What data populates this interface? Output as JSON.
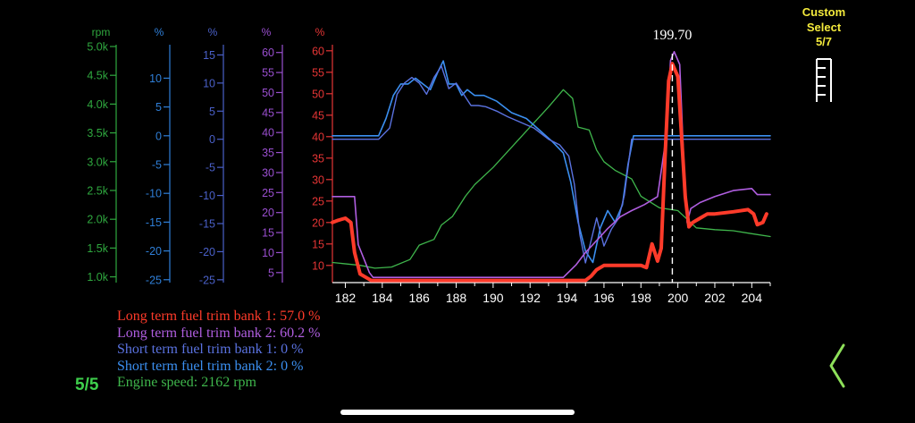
{
  "chart_data": {
    "type": "line",
    "cursor": {
      "x": 199.7,
      "label": "199.70"
    },
    "x": {
      "min": 181.3,
      "max": 205.0,
      "ticks": [
        182,
        184,
        186,
        188,
        190,
        192,
        194,
        196,
        198,
        200,
        202,
        204
      ]
    },
    "axes": [
      {
        "unit": "rpm",
        "color": "#2fa83f",
        "range": [
          0.9,
          5.0
        ],
        "ticks": [
          "5.0k",
          "4.5k",
          "4.0k",
          "3.5k",
          "3.0k",
          "2.5k",
          "2.0k",
          "1.5k",
          "1.0k"
        ],
        "tick_values": [
          5.0,
          4.5,
          4.0,
          3.5,
          3.0,
          2.5,
          2.0,
          1.5,
          1.0
        ]
      },
      {
        "unit": "%",
        "color": "#2f7fd8",
        "range": [
          -25.5,
          15.5
        ],
        "ticks": [
          "10",
          "5",
          "0",
          "-5",
          "-10",
          "-15",
          "-20",
          "-25"
        ],
        "tick_values": [
          10,
          5,
          0,
          -5,
          -10,
          -15,
          -20,
          -25
        ]
      },
      {
        "unit": "%",
        "color": "#4a60c8",
        "range": [
          -25.5,
          16.5
        ],
        "ticks": [
          "15",
          "10",
          "5",
          "0",
          "-5",
          "-10",
          "-15",
          "-20",
          "-25"
        ],
        "tick_values": [
          15,
          10,
          5,
          0,
          -5,
          -10,
          -15,
          -20,
          -25
        ]
      },
      {
        "unit": "%",
        "color": "#9a4fd0",
        "range": [
          2.5,
          61.5
        ],
        "ticks": [
          "60",
          "55",
          "50",
          "45",
          "40",
          "35",
          "30",
          "25",
          "20",
          "15",
          "10",
          "5"
        ],
        "tick_values": [
          60,
          55,
          50,
          45,
          40,
          35,
          30,
          25,
          20,
          15,
          10,
          5
        ]
      },
      {
        "unit": "%",
        "color": "#e53535",
        "range": [
          6.0,
          61.0
        ],
        "ticks": [
          "60",
          "55",
          "50",
          "45",
          "40",
          "35",
          "30",
          "25",
          "20",
          "15",
          "10"
        ],
        "tick_values": [
          60,
          55,
          50,
          45,
          40,
          35,
          30,
          25,
          20,
          15,
          10
        ]
      }
    ],
    "series": [
      {
        "name": "Long term fuel trim bank 1",
        "axis": 4,
        "color": "#ff3b2a",
        "width": 4,
        "points": [
          [
            181.3,
            20
          ],
          [
            181.6,
            20.5
          ],
          [
            182.0,
            21
          ],
          [
            182.3,
            20
          ],
          [
            182.5,
            13
          ],
          [
            182.8,
            8
          ],
          [
            183.2,
            7
          ],
          [
            183.4,
            6.5
          ],
          [
            195.0,
            6.5
          ],
          [
            195.3,
            7.5
          ],
          [
            195.6,
            9
          ],
          [
            196.0,
            10
          ],
          [
            198.0,
            10
          ],
          [
            198.3,
            9.5
          ],
          [
            198.6,
            15
          ],
          [
            198.9,
            11
          ],
          [
            199.1,
            14
          ],
          [
            199.3,
            35
          ],
          [
            199.5,
            53
          ],
          [
            199.7,
            57
          ],
          [
            200.0,
            54
          ],
          [
            200.2,
            40
          ],
          [
            200.4,
            26
          ],
          [
            200.6,
            19
          ],
          [
            200.8,
            20
          ],
          [
            201.2,
            21
          ],
          [
            201.6,
            22
          ],
          [
            202.0,
            22
          ],
          [
            203.0,
            22.5
          ],
          [
            203.8,
            23
          ],
          [
            204.1,
            22
          ],
          [
            204.3,
            19.5
          ],
          [
            204.6,
            20
          ],
          [
            204.8,
            22
          ]
        ]
      },
      {
        "name": "Long term fuel trim bank 2",
        "axis": 3,
        "color": "#b05ee0",
        "width": 1.6,
        "points": [
          [
            181.3,
            24
          ],
          [
            182.5,
            24
          ],
          [
            182.7,
            12
          ],
          [
            183.3,
            5
          ],
          [
            183.5,
            3.8
          ],
          [
            193.8,
            3.8
          ],
          [
            194.5,
            7
          ],
          [
            195.0,
            10
          ],
          [
            195.6,
            13
          ],
          [
            196.2,
            16
          ],
          [
            196.9,
            19
          ],
          [
            197.5,
            20.5
          ],
          [
            198.2,
            22
          ],
          [
            198.9,
            24
          ],
          [
            199.4,
            40
          ],
          [
            199.6,
            58
          ],
          [
            199.8,
            60.2
          ],
          [
            200.1,
            57
          ],
          [
            200.3,
            35
          ],
          [
            200.5,
            17.5
          ],
          [
            200.7,
            21
          ],
          [
            201.2,
            22.5
          ],
          [
            202.0,
            24
          ],
          [
            203.0,
            25.5
          ],
          [
            204.0,
            26
          ],
          [
            204.3,
            24.5
          ],
          [
            205.0,
            24.5
          ]
        ]
      },
      {
        "name": "Short term fuel trim bank 1",
        "axis": 2,
        "color": "#5a72e0",
        "width": 1.4,
        "points": [
          [
            181.3,
            0
          ],
          [
            183.8,
            0
          ],
          [
            184.4,
            2
          ],
          [
            184.8,
            8
          ],
          [
            185.2,
            10
          ],
          [
            185.6,
            11
          ],
          [
            186.0,
            10
          ],
          [
            186.4,
            8
          ],
          [
            186.8,
            11
          ],
          [
            187.2,
            13
          ],
          [
            187.6,
            9
          ],
          [
            188.0,
            10
          ],
          [
            188.4,
            8
          ],
          [
            188.8,
            6
          ],
          [
            189.2,
            6
          ],
          [
            189.6,
            5.8
          ],
          [
            190.2,
            5
          ],
          [
            190.8,
            4
          ],
          [
            191.5,
            3
          ],
          [
            192.2,
            2
          ],
          [
            193.0,
            0
          ],
          [
            193.6,
            -1
          ],
          [
            194.1,
            -3
          ],
          [
            194.4,
            -8
          ],
          [
            194.7,
            -17
          ],
          [
            195.0,
            -22
          ],
          [
            195.3,
            -18
          ],
          [
            195.6,
            -14
          ],
          [
            196.0,
            -19
          ],
          [
            196.4,
            -16
          ],
          [
            196.8,
            -14
          ],
          [
            197.1,
            -10
          ],
          [
            197.5,
            0
          ],
          [
            205.0,
            0
          ]
        ]
      },
      {
        "name": "Short term fuel trim bank 2",
        "axis": 1,
        "color": "#3b8ff0",
        "width": 1.6,
        "points": [
          [
            181.3,
            0
          ],
          [
            183.8,
            0
          ],
          [
            184.2,
            3
          ],
          [
            184.6,
            7
          ],
          [
            185.0,
            9
          ],
          [
            185.4,
            9
          ],
          [
            185.8,
            10
          ],
          [
            186.2,
            9
          ],
          [
            186.6,
            8
          ],
          [
            187.0,
            11
          ],
          [
            187.3,
            13
          ],
          [
            187.6,
            9
          ],
          [
            188.0,
            9
          ],
          [
            188.3,
            7
          ],
          [
            188.6,
            8
          ],
          [
            189.0,
            7
          ],
          [
            189.5,
            7
          ],
          [
            190.2,
            6
          ],
          [
            191.0,
            4
          ],
          [
            191.8,
            3
          ],
          [
            192.5,
            1
          ],
          [
            193.2,
            -1
          ],
          [
            193.8,
            -3
          ],
          [
            194.2,
            -8
          ],
          [
            194.6,
            -15
          ],
          [
            195.0,
            -20
          ],
          [
            195.4,
            -22
          ],
          [
            195.8,
            -16
          ],
          [
            196.2,
            -13
          ],
          [
            196.6,
            -15
          ],
          [
            197.0,
            -12
          ],
          [
            197.3,
            -5
          ],
          [
            197.6,
            0
          ],
          [
            205.0,
            0
          ]
        ]
      },
      {
        "name": "Engine speed",
        "axis": 0,
        "color": "#3fb64c",
        "width": 1.3,
        "points": [
          [
            181.3,
            1.25
          ],
          [
            182.8,
            1.2
          ],
          [
            183.6,
            1.15
          ],
          [
            184.5,
            1.17
          ],
          [
            185.5,
            1.3
          ],
          [
            186.0,
            1.55
          ],
          [
            186.8,
            1.65
          ],
          [
            187.2,
            1.9
          ],
          [
            187.8,
            2.05
          ],
          [
            188.5,
            2.4
          ],
          [
            189.0,
            2.6
          ],
          [
            190.0,
            2.9
          ],
          [
            191.0,
            3.25
          ],
          [
            192.0,
            3.6
          ],
          [
            193.0,
            3.95
          ],
          [
            193.8,
            4.25
          ],
          [
            194.3,
            4.1
          ],
          [
            194.6,
            3.6
          ],
          [
            195.2,
            3.55
          ],
          [
            195.6,
            3.2
          ],
          [
            196.0,
            3.0
          ],
          [
            196.6,
            2.85
          ],
          [
            197.5,
            2.7
          ],
          [
            198.0,
            2.4
          ],
          [
            199.0,
            2.2
          ],
          [
            200.0,
            2.15
          ],
          [
            201.0,
            1.85
          ],
          [
            202.0,
            1.82
          ],
          [
            203.0,
            1.8
          ],
          [
            204.0,
            1.75
          ],
          [
            205.0,
            1.7
          ]
        ]
      }
    ]
  },
  "legend": [
    {
      "text": "Long term fuel trim bank 1: 57.0 %",
      "color": "#ff3b2a"
    },
    {
      "text": "Long term fuel trim bank 2: 60.2 %",
      "color": "#b05ee0"
    },
    {
      "text": "Short term fuel trim bank 1: 0 %",
      "color": "#5a72e0"
    },
    {
      "text": "Short term fuel trim bank 2: 0 %",
      "color": "#3b8ff0"
    },
    {
      "text": "Engine speed: 2162 rpm",
      "color": "#3fb64c"
    }
  ],
  "page_indicator": "5/5",
  "custom_select": {
    "line1": "Custom",
    "line2": "Select",
    "line3": "5/7",
    "icon": "ruler-icon"
  },
  "back_icon": "chevron-left-icon"
}
